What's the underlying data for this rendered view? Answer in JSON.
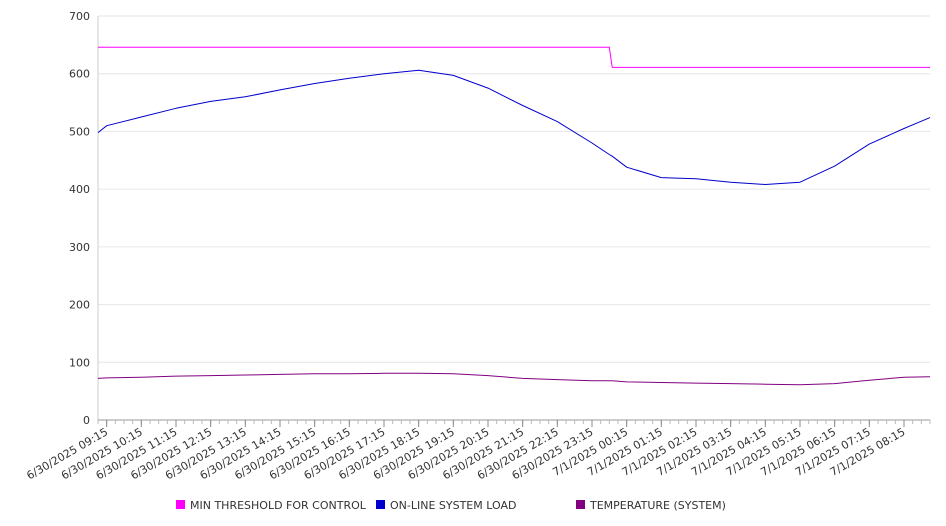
{
  "chart_data": {
    "type": "line",
    "title": "",
    "xlabel": "",
    "ylabel": "",
    "ylim": [
      0,
      700
    ],
    "yticks": [
      0,
      100,
      200,
      300,
      400,
      500,
      600,
      700
    ],
    "grid": true,
    "legend_position": "bottom",
    "x_tick_labels": [
      "6/30/2025 09:15",
      "6/30/2025 10:15",
      "6/30/2025 11:15",
      "6/30/2025 12:15",
      "6/30/2025 13:15",
      "6/30/2025 14:15",
      "6/30/2025 15:15",
      "6/30/2025 16:15",
      "6/30/2025 17:15",
      "6/30/2025 18:15",
      "6/30/2025 19:15",
      "6/30/2025 20:15",
      "6/30/2025 21:15",
      "6/30/2025 22:15",
      "6/30/2025 23:15",
      "7/1/2025 00:15",
      "7/1/2025 01:15",
      "7/1/2025 02:15",
      "7/1/2025 03:15",
      "7/1/2025 04:15",
      "7/1/2025 05:15",
      "7/1/2025 06:15",
      "7/1/2025 07:15",
      "7/1/2025 08:15"
    ],
    "x": [
      "6/30/2025 09:00",
      "6/30/2025 09:15",
      "6/30/2025 10:15",
      "6/30/2025 11:15",
      "6/30/2025 12:15",
      "6/30/2025 13:15",
      "6/30/2025 14:15",
      "6/30/2025 15:15",
      "6/30/2025 16:15",
      "6/30/2025 17:15",
      "6/30/2025 18:15",
      "6/30/2025 19:15",
      "6/30/2025 20:15",
      "6/30/2025 21:15",
      "6/30/2025 22:15",
      "6/30/2025 23:15",
      "6/30/2025 23:45",
      "6/30/2025 23:50",
      "7/1/2025 00:15",
      "7/1/2025 01:15",
      "7/1/2025 02:15",
      "7/1/2025 03:15",
      "7/1/2025 04:15",
      "7/1/2025 05:15",
      "7/1/2025 06:15",
      "7/1/2025 07:15",
      "7/1/2025 08:15",
      "7/1/2025 09:00"
    ],
    "series": [
      {
        "name": "MIN THRESHOLD FOR CONTROL",
        "color": "#ff00ff",
        "values": [
          646,
          646,
          646,
          646,
          646,
          646,
          646,
          646,
          646,
          646,
          646,
          646,
          646,
          646,
          646,
          646,
          646,
          611,
          611,
          611,
          611,
          611,
          611,
          611,
          611,
          611,
          611,
          611
        ]
      },
      {
        "name": "ON-LINE SYSTEM LOAD",
        "color": "#0000cc",
        "values": [
          498,
          510,
          525,
          540,
          552,
          560,
          572,
          583,
          592,
          600,
          606,
          597,
          575,
          545,
          517,
          480,
          460,
          457,
          438,
          420,
          418,
          412,
          408,
          412,
          440,
          478,
          505,
          524
        ]
      },
      {
        "name": "TEMPERATURE (SYSTEM)",
        "color": "#800080",
        "values": [
          72,
          73,
          74,
          76,
          77,
          78,
          79,
          80,
          80,
          81,
          81,
          80,
          77,
          72,
          70,
          68,
          68,
          68,
          66,
          65,
          64,
          63,
          62,
          61,
          63,
          69,
          74,
          75
        ]
      }
    ]
  }
}
